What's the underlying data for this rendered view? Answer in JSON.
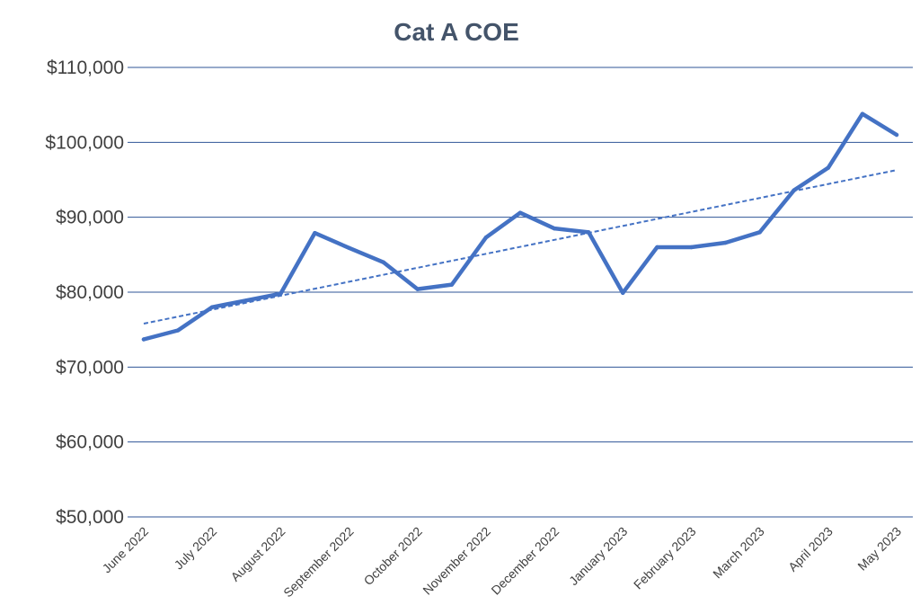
{
  "chart_data": {
    "type": "line",
    "title": "Cat A COE",
    "xlabel": "",
    "ylabel": "",
    "ylim": [
      50000,
      110000
    ],
    "y_ticks": [
      50000,
      60000,
      70000,
      80000,
      90000,
      100000,
      110000
    ],
    "y_tick_labels": [
      "$50,000",
      "$60,000",
      "$70,000",
      "$80,000",
      "$90,000",
      "$100,000",
      "$110,000"
    ],
    "x_tick_labels": [
      "June 2022",
      "July 2022",
      "August 2022",
      "September 2022",
      "October 2022",
      "November 2022",
      "December 2022",
      "January 2023",
      "February 2023",
      "March 2023",
      "April 2023",
      "May 2023"
    ],
    "x": [
      0,
      0.5,
      1,
      1.5,
      2,
      2.5,
      3,
      3.5,
      4,
      4.5,
      5,
      5.5,
      6,
      6.5,
      7,
      7.5,
      8,
      8.5,
      9,
      9.5,
      10,
      10.5,
      11
    ],
    "series": [
      {
        "values": [
          73700,
          74900,
          78000,
          78900,
          79800,
          87900,
          85900,
          84000,
          80400,
          81000,
          87300,
          90600,
          88500,
          88000,
          79900,
          86000,
          86000,
          86600,
          88000,
          93600,
          96600,
          103800,
          101000
        ],
        "color": "#4472c4"
      }
    ],
    "trendline": {
      "type": "linear",
      "start": 75800,
      "end": 96300,
      "style": "dashed",
      "color": "#4472c4"
    },
    "grid": true,
    "legend": "none"
  }
}
